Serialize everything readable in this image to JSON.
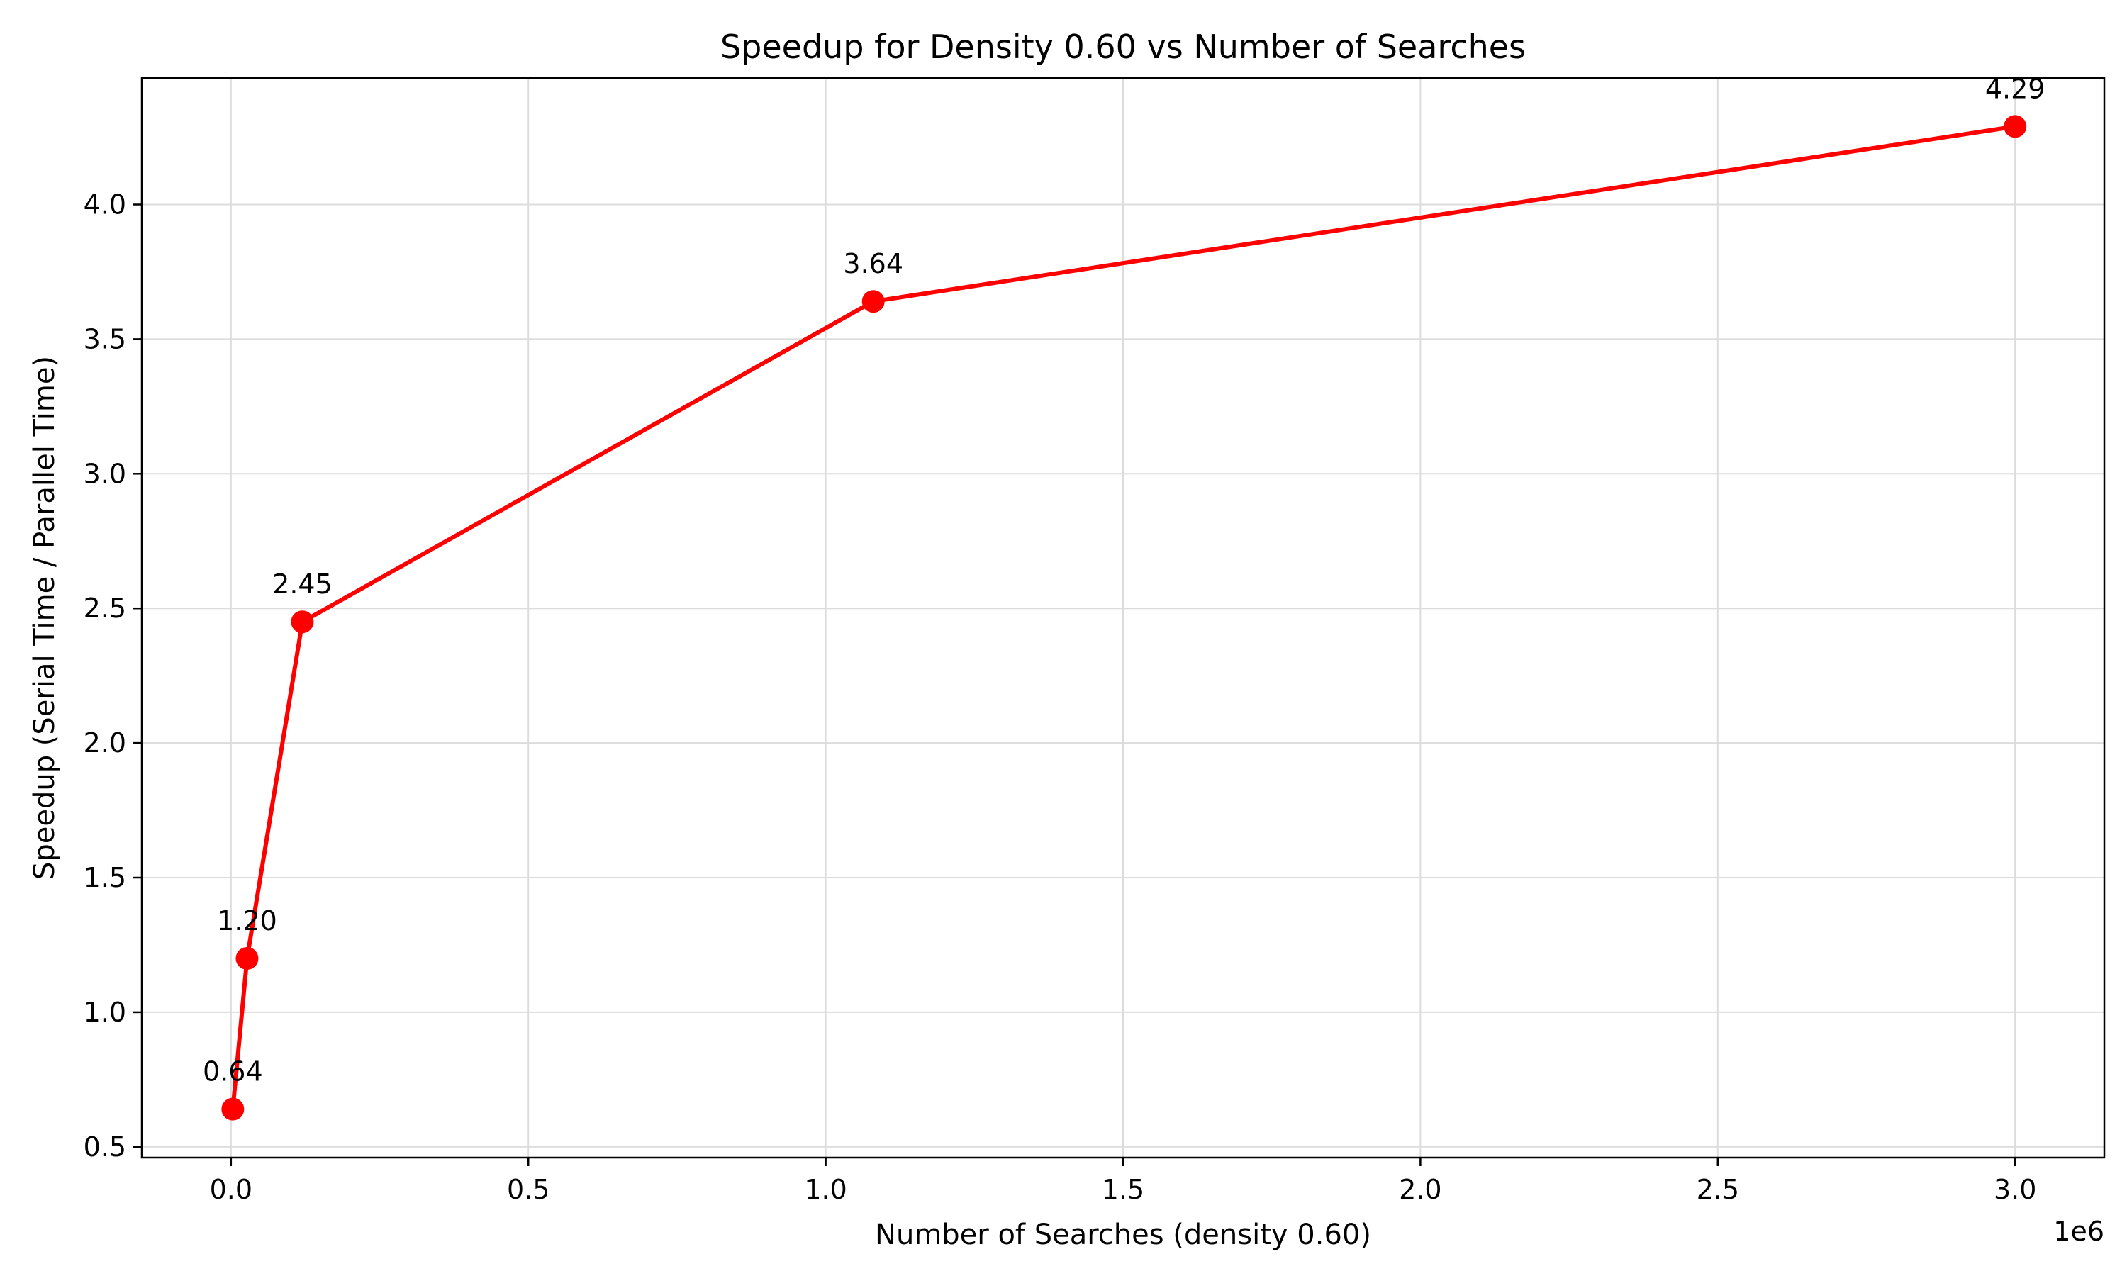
{
  "chart_data": {
    "type": "line",
    "title": "Speedup for Density 0.60 vs Number of Searches",
    "xlabel": "Number of Searches (density 0.60)",
    "ylabel": "Speedup (Serial Time / Parallel Time)",
    "x_offset_text": "1e6",
    "x_scale": 1000000,
    "xlim": [
      -150000,
      3150000
    ],
    "ylim": [
      0.46,
      4.47
    ],
    "x_ticks": [
      0,
      500000,
      1000000,
      1500000,
      2000000,
      2500000,
      3000000
    ],
    "x_tick_labels": [
      "0.0",
      "0.5",
      "1.0",
      "1.5",
      "2.0",
      "2.5",
      "3.0"
    ],
    "y_ticks": [
      0.5,
      1.0,
      1.5,
      2.0,
      2.5,
      3.0,
      3.5,
      4.0
    ],
    "y_tick_labels": [
      "0.5",
      "1.0",
      "1.5",
      "2.0",
      "2.5",
      "3.0",
      "3.5",
      "4.0"
    ],
    "grid": true,
    "series": [
      {
        "color": "#ff0000",
        "marker": "circle",
        "x": [
          3000,
          27000,
          120000,
          1080000,
          3000000
        ],
        "y": [
          0.64,
          1.2,
          2.45,
          3.64,
          4.29
        ],
        "data_labels": [
          "0.64",
          "1.20",
          "2.45",
          "3.64",
          "4.29"
        ]
      }
    ]
  }
}
